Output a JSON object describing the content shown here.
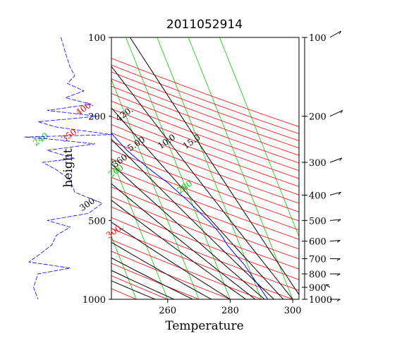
{
  "chart_data": {
    "type": "line",
    "title": "2011052914",
    "xlabel": "Temperature",
    "ylabel": "height",
    "xlim": [
      242,
      302
    ],
    "ylim": [
      1000,
      100
    ],
    "x_ticks": [
      260,
      280,
      300
    ],
    "y_ticks": [
      100,
      200,
      500,
      1000
    ],
    "y_scale": "log",
    "grid": false,
    "right_axis_ticks": [
      100,
      200,
      300,
      400,
      500,
      600,
      700,
      800,
      900,
      1000
    ],
    "isotherm_labels": [
      "220",
      "240",
      "260",
      "280"
    ],
    "dry_adiabat_labels": [
      "300.",
      "350.",
      "400."
    ],
    "moist_adiabat_labels": [
      "300.",
      "360.",
      "420."
    ],
    "mixing_ratio_labels": [
      "5.00",
      "10.0",
      "15.0"
    ],
    "colors": {
      "profile": "#0000ff",
      "isotherms": "#00cc00",
      "dry_adiabats": "#ff0000",
      "moist_adiabats": "#000000",
      "frame": "#000000"
    },
    "series": [
      {
        "kind": "temperature-profile",
        "x": [
          242,
          243.5,
          246,
          249,
          252,
          256,
          260,
          263,
          264.5,
          266,
          268,
          270,
          272,
          275,
          277,
          279,
          281,
          283,
          284.5,
          285.5,
          286,
          287,
          288,
          289,
          289.5,
          290,
          290.5,
          291,
          291.5,
          292
        ],
        "y": [
          100,
          110,
          130,
          150,
          170,
          190,
          210,
          230,
          250,
          270,
          290,
          310,
          330,
          360,
          390,
          420,
          460,
          500,
          540,
          580,
          620,
          660,
          700,
          740,
          780,
          820,
          860,
          900,
          950,
          1000
        ]
      }
    ],
    "side_profile": {
      "kind": "humidity-trace",
      "x": [
        0.45,
        0.5,
        0.55,
        0.6,
        0.52,
        0.7,
        0.5,
        0.78,
        0.3,
        0.85,
        0.2,
        0.4,
        1.0,
        0.05,
        0.35,
        0.82,
        0.3,
        0.6,
        0.25,
        0.4,
        0.55,
        0.6,
        0.9,
        0.75,
        0.3,
        0.55,
        0.4,
        0.35,
        0.2,
        0.1,
        0.55,
        0.2,
        0.15,
        0.2
      ],
      "y": [
        100,
        115,
        130,
        140,
        150,
        160,
        170,
        180,
        190,
        200,
        210,
        220,
        235,
        240,
        245,
        255,
        270,
        290,
        300,
        320,
        350,
        390,
        430,
        470,
        500,
        530,
        570,
        620,
        680,
        720,
        760,
        800,
        900,
        1000
      ]
    },
    "wind_barbs": [
      {
        "p": 100,
        "dir": 240,
        "length": 1.0
      },
      {
        "p": 200,
        "dir": 245,
        "length": 1.1
      },
      {
        "p": 300,
        "dir": 250,
        "length": 1.0
      },
      {
        "p": 400,
        "dir": 255,
        "length": 0.9
      },
      {
        "p": 500,
        "dir": 265,
        "length": 0.85
      },
      {
        "p": 600,
        "dir": 265,
        "length": 0.8
      },
      {
        "p": 700,
        "dir": 270,
        "length": 0.8
      },
      {
        "p": 800,
        "dir": 270,
        "length": 0.8
      },
      {
        "p": 900,
        "dir": 120,
        "length": 0.4
      },
      {
        "p": 1000,
        "dir": 270,
        "length": 0.8
      }
    ]
  }
}
